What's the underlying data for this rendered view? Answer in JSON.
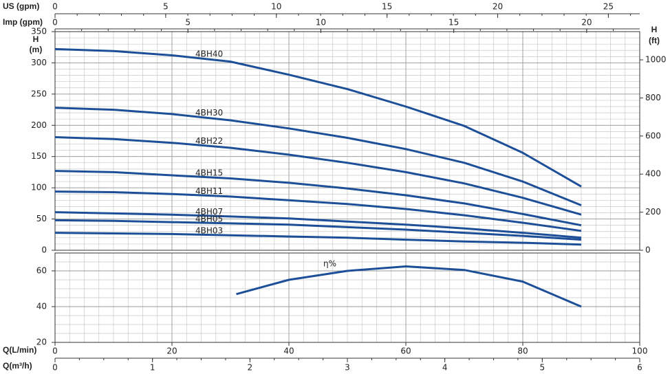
{
  "chart_data": [
    {
      "type": "line",
      "top_axes": [
        {
          "label": "US (gpm)",
          "lim": [
            0,
            26.417
          ],
          "ticks": [
            0,
            5,
            10,
            15,
            20,
            25
          ]
        },
        {
          "label": "Imp (gpm)",
          "lim": [
            0,
            21.997
          ],
          "ticks": [
            0,
            5,
            10,
            15,
            20
          ]
        }
      ],
      "y_label": [
        "H",
        "(m)"
      ],
      "y2_label": [
        "H",
        "(ft)"
      ],
      "xlim": [
        0,
        100
      ],
      "xticks": [
        0,
        20,
        40,
        60,
        80,
        100
      ],
      "ylim": [
        0,
        350
      ],
      "yticks": [
        0,
        50,
        100,
        150,
        200,
        250,
        300,
        350
      ],
      "y2lim": [
        0,
        1148.29
      ],
      "y2ticks": [
        0,
        200,
        400,
        600,
        800,
        1000
      ],
      "grid": true,
      "x": [
        0,
        10,
        20,
        30,
        40,
        50,
        60,
        70,
        80,
        90
      ],
      "series": [
        {
          "name": "4BH40",
          "color": "#1d4f99",
          "values": [
            322,
            319,
            312,
            302,
            281,
            258,
            230,
            199,
            156,
            102
          ]
        },
        {
          "name": "4BH30",
          "color": "#1d4f99",
          "values": [
            228,
            225,
            218,
            208,
            195,
            180,
            162,
            140,
            110,
            72
          ]
        },
        {
          "name": "4BH22",
          "color": "#1d4f99",
          "values": [
            181,
            178,
            172,
            164,
            153,
            140,
            125,
            107,
            84,
            57
          ]
        },
        {
          "name": "4BH15",
          "color": "#1d4f99",
          "values": [
            127,
            125,
            120,
            115,
            108,
            99,
            88,
            75,
            58,
            40
          ]
        },
        {
          "name": "4BH11",
          "color": "#1d4f99",
          "values": [
            94,
            93,
            90,
            86,
            80,
            74,
            66,
            56,
            44,
            31
          ]
        },
        {
          "name": "4BH07",
          "color": "#1d4f99",
          "values": [
            61,
            59,
            57,
            54,
            51,
            46,
            41,
            35,
            28,
            20
          ]
        },
        {
          "name": "4BH05",
          "color": "#1d4f99",
          "values": [
            48,
            47,
            45,
            43,
            41,
            37,
            33,
            28,
            23,
            17
          ]
        },
        {
          "name": "4BH03",
          "color": "#1d4f99",
          "values": [
            28,
            27,
            26,
            24,
            22,
            20,
            17,
            14,
            12,
            9
          ]
        }
      ]
    },
    {
      "type": "line",
      "xlim": [
        0,
        100
      ],
      "xticks": [
        0,
        20,
        40,
        60,
        80,
        100
      ],
      "x_label": "Q(L/min)",
      "x2_label": "Q(m³/h)",
      "x2lim": [
        0,
        6
      ],
      "x2ticks": [
        0,
        1,
        2,
        3,
        4,
        5,
        6
      ],
      "ylim": [
        20,
        70
      ],
      "yticks": [
        20,
        40,
        60
      ],
      "grid": true,
      "x": [
        31,
        40,
        50,
        60,
        70,
        80,
        90
      ],
      "series": [
        {
          "name": "η%",
          "color": "#1d4f99",
          "values": [
            47,
            55,
            60,
            62.5,
            60.5,
            54,
            40
          ]
        }
      ]
    }
  ]
}
